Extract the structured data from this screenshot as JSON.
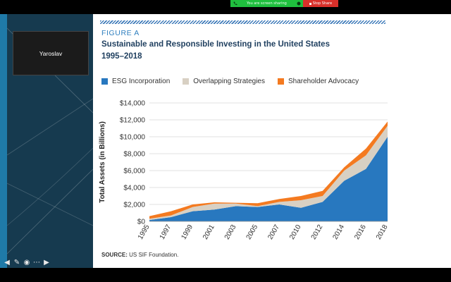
{
  "share_bar": {
    "status_text": "You are screen sharing",
    "stop_label": "Stop Share"
  },
  "participant": {
    "name": "Yaroslav"
  },
  "figure": {
    "label": "FIGURE A",
    "title_line1": "Sustainable and Responsible Investing in the United States",
    "title_line2": "1995–2018",
    "source_label": "SOURCE:",
    "source_text": " US SIF Foundation."
  },
  "colors": {
    "esg": "#2878bf",
    "overlap": "#d8d0c3",
    "advocacy": "#f47a20",
    "share_green": "#1fbf3e",
    "stop_red": "#d9302a"
  },
  "chart_data": {
    "type": "area",
    "stacked": true,
    "ylabel": "Total Assets (in Billions)",
    "xlabel": "",
    "ylim": [
      0,
      14000
    ],
    "yticks": [
      "$0",
      "$2,000",
      "$4,000",
      "$6,000",
      "$8,000",
      "$10,000",
      "$12,000",
      "$14,000"
    ],
    "categories": [
      "1995",
      "1997",
      "1999",
      "2001",
      "2003",
      "2005",
      "2007",
      "2010",
      "2012",
      "2014",
      "2016",
      "2018"
    ],
    "legend_position": "top",
    "series": [
      {
        "name": "ESG Incorporation",
        "values": [
          160,
          500,
          1200,
          1400,
          1800,
          1700,
          2000,
          1600,
          2300,
          4800,
          6200,
          10000
        ]
      },
      {
        "name": "Overlapping Strategies",
        "values": [
          160,
          200,
          500,
          700,
          300,
          100,
          300,
          900,
          700,
          1200,
          1600,
          1300
        ]
      },
      {
        "name": "Shareholder Advocacy",
        "values": [
          300,
          500,
          300,
          150,
          100,
          350,
          350,
          500,
          600,
          400,
          800,
          500
        ]
      }
    ]
  }
}
